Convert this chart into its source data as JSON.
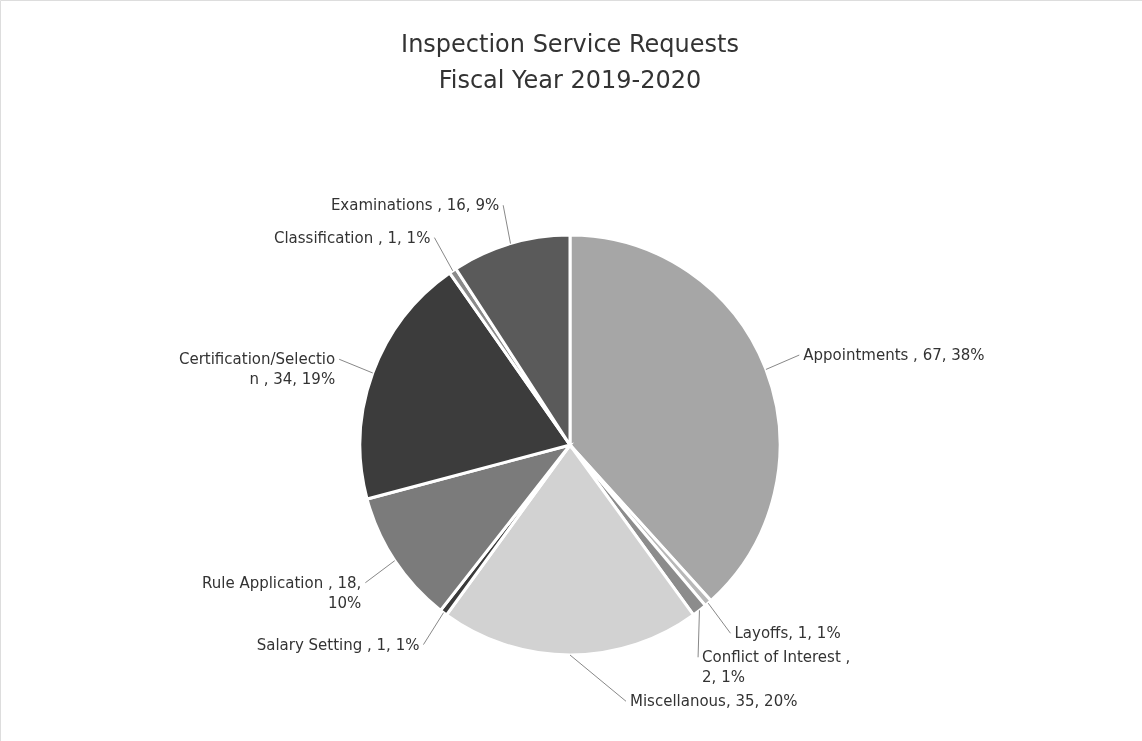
{
  "chart_data": {
    "type": "pie",
    "title": "Inspection Service Requests",
    "subtitle": "Fiscal Year 2019-2020",
    "categories": [
      "Appointments ",
      "Layoffs",
      "Conflict of Interest ",
      "Miscellanous",
      "Salary Setting ",
      "Rule Application ",
      "Certification/Selection ",
      "Classification ",
      "Examinations "
    ],
    "values": [
      67,
      1,
      2,
      35,
      1,
      18,
      34,
      1,
      16
    ],
    "value_labels": [
      ", 67, 38%",
      ", 1, 1%",
      ", 2, 1%",
      ", 35, 20%",
      ", 1, 1%",
      ", 18, 10%",
      ", 34, 19%",
      ", 1, 1%",
      ", 16, 9%"
    ],
    "colors": [
      "#a6a6a6",
      "#b8b8b8",
      "#8c8c8c",
      "#d2d2d2",
      "#3a3a3a",
      "#7b7b7b",
      "#3c3c3c",
      "#8a8a8a",
      "#5a5a5a"
    ]
  }
}
